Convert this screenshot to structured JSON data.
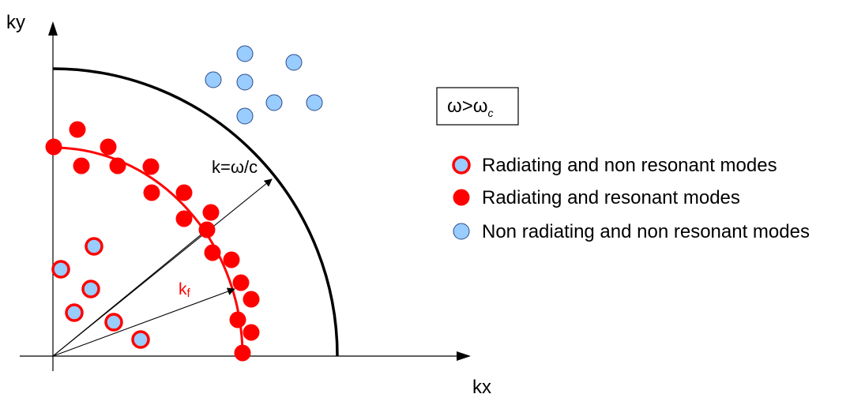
{
  "axes": {
    "x_label": "kx",
    "y_label": "ky"
  },
  "labels": {
    "k_light": "k=ω/c",
    "k_flexural_main": "k",
    "k_flexural_sub": "f"
  },
  "condition": {
    "omega": "ω",
    "operator": ">",
    "omega_c_main": "ω",
    "omega_c_sub": "c"
  },
  "legend": [
    {
      "label": "Radiating and non resonant modes",
      "marker": "hollow-red-ring-blue-fill"
    },
    {
      "label": "Radiating and resonant modes",
      "marker": "solid-red"
    },
    {
      "label": "Non radiating and non resonant modes",
      "marker": "light-blue"
    }
  ],
  "colors": {
    "red": "#ff0000",
    "blue": "#99ccff",
    "black": "#000000",
    "blue_stroke": "#2a4a8a"
  }
}
